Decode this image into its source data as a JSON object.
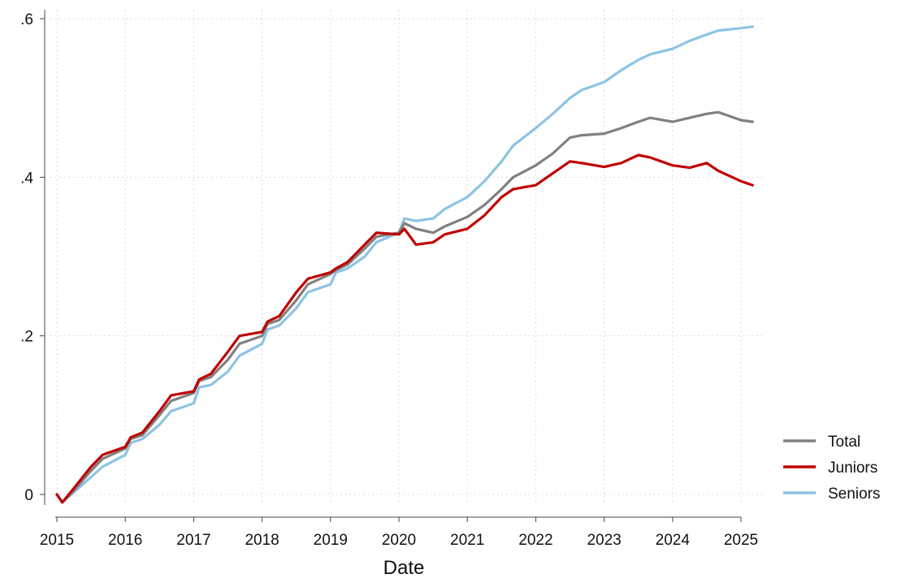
{
  "chart_data": {
    "type": "line",
    "title": "",
    "xlabel": "Date",
    "ylabel": "",
    "x_ticks": [
      2015,
      2016,
      2017,
      2018,
      2019,
      2020,
      2021,
      2022,
      2023,
      2024,
      2025
    ],
    "x_tick_labels": [
      "2015",
      "2016",
      "2017",
      "2018",
      "2019",
      "2020",
      "2021",
      "2022",
      "2023",
      "2024",
      "2025"
    ],
    "y_ticks": [
      0,
      0.2,
      0.4,
      0.6
    ],
    "y_tick_labels": [
      "0",
      ".2",
      ".4",
      ".6"
    ],
    "xlim": [
      2015,
      2025.17
    ],
    "ylim": [
      -0.01,
      0.6
    ],
    "grid": true,
    "legend_position": "bottom-right",
    "series": [
      {
        "name": "Total",
        "color": "#808080",
        "points": [
          [
            2015.0,
            0.0
          ],
          [
            2015.08,
            -0.01
          ],
          [
            2015.25,
            0.005
          ],
          [
            2015.5,
            0.03
          ],
          [
            2015.67,
            0.045
          ],
          [
            2016.0,
            0.058
          ],
          [
            2016.08,
            0.07
          ],
          [
            2016.25,
            0.075
          ],
          [
            2016.5,
            0.1
          ],
          [
            2016.67,
            0.118
          ],
          [
            2017.0,
            0.128
          ],
          [
            2017.08,
            0.143
          ],
          [
            2017.25,
            0.148
          ],
          [
            2017.5,
            0.17
          ],
          [
            2017.67,
            0.19
          ],
          [
            2018.0,
            0.2
          ],
          [
            2018.08,
            0.215
          ],
          [
            2018.25,
            0.22
          ],
          [
            2018.5,
            0.245
          ],
          [
            2018.67,
            0.265
          ],
          [
            2019.0,
            0.278
          ],
          [
            2019.08,
            0.283
          ],
          [
            2019.25,
            0.29
          ],
          [
            2019.5,
            0.31
          ],
          [
            2019.67,
            0.325
          ],
          [
            2020.0,
            0.33
          ],
          [
            2020.08,
            0.342
          ],
          [
            2020.25,
            0.335
          ],
          [
            2020.5,
            0.33
          ],
          [
            2020.67,
            0.338
          ],
          [
            2021.0,
            0.35
          ],
          [
            2021.25,
            0.365
          ],
          [
            2021.5,
            0.385
          ],
          [
            2021.67,
            0.4
          ],
          [
            2022.0,
            0.415
          ],
          [
            2022.25,
            0.43
          ],
          [
            2022.5,
            0.45
          ],
          [
            2022.67,
            0.453
          ],
          [
            2023.0,
            0.455
          ],
          [
            2023.25,
            0.462
          ],
          [
            2023.5,
            0.47
          ],
          [
            2023.67,
            0.475
          ],
          [
            2024.0,
            0.47
          ],
          [
            2024.25,
            0.475
          ],
          [
            2024.5,
            0.48
          ],
          [
            2024.67,
            0.482
          ],
          [
            2025.0,
            0.472
          ],
          [
            2025.17,
            0.47
          ]
        ]
      },
      {
        "name": "Juniors",
        "color": "#c00000",
        "points": [
          [
            2015.0,
            0.0
          ],
          [
            2015.08,
            -0.01
          ],
          [
            2015.25,
            0.008
          ],
          [
            2015.5,
            0.035
          ],
          [
            2015.67,
            0.05
          ],
          [
            2016.0,
            0.06
          ],
          [
            2016.08,
            0.072
          ],
          [
            2016.25,
            0.078
          ],
          [
            2016.5,
            0.105
          ],
          [
            2016.67,
            0.125
          ],
          [
            2017.0,
            0.13
          ],
          [
            2017.08,
            0.145
          ],
          [
            2017.25,
            0.152
          ],
          [
            2017.5,
            0.18
          ],
          [
            2017.67,
            0.2
          ],
          [
            2018.0,
            0.205
          ],
          [
            2018.08,
            0.218
          ],
          [
            2018.25,
            0.225
          ],
          [
            2018.5,
            0.255
          ],
          [
            2018.67,
            0.272
          ],
          [
            2019.0,
            0.28
          ],
          [
            2019.08,
            0.285
          ],
          [
            2019.25,
            0.293
          ],
          [
            2019.5,
            0.315
          ],
          [
            2019.67,
            0.33
          ],
          [
            2020.0,
            0.328
          ],
          [
            2020.08,
            0.335
          ],
          [
            2020.25,
            0.315
          ],
          [
            2020.5,
            0.318
          ],
          [
            2020.67,
            0.328
          ],
          [
            2021.0,
            0.335
          ],
          [
            2021.25,
            0.352
          ],
          [
            2021.5,
            0.375
          ],
          [
            2021.67,
            0.385
          ],
          [
            2022.0,
            0.39
          ],
          [
            2022.25,
            0.405
          ],
          [
            2022.5,
            0.42
          ],
          [
            2022.67,
            0.418
          ],
          [
            2023.0,
            0.413
          ],
          [
            2023.25,
            0.418
          ],
          [
            2023.5,
            0.428
          ],
          [
            2023.67,
            0.425
          ],
          [
            2024.0,
            0.415
          ],
          [
            2024.25,
            0.412
          ],
          [
            2024.5,
            0.418
          ],
          [
            2024.67,
            0.408
          ],
          [
            2025.0,
            0.395
          ],
          [
            2025.17,
            0.39
          ]
        ]
      },
      {
        "name": "Seniors",
        "color": "#8ec3e4",
        "points": [
          [
            2015.0,
            0.0
          ],
          [
            2015.08,
            -0.01
          ],
          [
            2015.25,
            0.003
          ],
          [
            2015.5,
            0.022
          ],
          [
            2015.67,
            0.035
          ],
          [
            2016.0,
            0.05
          ],
          [
            2016.08,
            0.065
          ],
          [
            2016.25,
            0.07
          ],
          [
            2016.5,
            0.088
          ],
          [
            2016.67,
            0.105
          ],
          [
            2017.0,
            0.115
          ],
          [
            2017.08,
            0.135
          ],
          [
            2017.25,
            0.138
          ],
          [
            2017.5,
            0.155
          ],
          [
            2017.67,
            0.175
          ],
          [
            2018.0,
            0.19
          ],
          [
            2018.08,
            0.208
          ],
          [
            2018.25,
            0.213
          ],
          [
            2018.5,
            0.235
          ],
          [
            2018.67,
            0.255
          ],
          [
            2019.0,
            0.265
          ],
          [
            2019.08,
            0.28
          ],
          [
            2019.25,
            0.285
          ],
          [
            2019.5,
            0.3
          ],
          [
            2019.67,
            0.318
          ],
          [
            2020.0,
            0.33
          ],
          [
            2020.08,
            0.348
          ],
          [
            2020.25,
            0.345
          ],
          [
            2020.5,
            0.348
          ],
          [
            2020.67,
            0.36
          ],
          [
            2021.0,
            0.375
          ],
          [
            2021.25,
            0.395
          ],
          [
            2021.5,
            0.42
          ],
          [
            2021.67,
            0.44
          ],
          [
            2022.0,
            0.462
          ],
          [
            2022.25,
            0.48
          ],
          [
            2022.5,
            0.5
          ],
          [
            2022.67,
            0.51
          ],
          [
            2023.0,
            0.52
          ],
          [
            2023.25,
            0.535
          ],
          [
            2023.5,
            0.548
          ],
          [
            2023.67,
            0.555
          ],
          [
            2024.0,
            0.562
          ],
          [
            2024.25,
            0.572
          ],
          [
            2024.5,
            0.58
          ],
          [
            2024.67,
            0.585
          ],
          [
            2025.0,
            0.588
          ],
          [
            2025.17,
            0.59
          ]
        ]
      }
    ]
  }
}
